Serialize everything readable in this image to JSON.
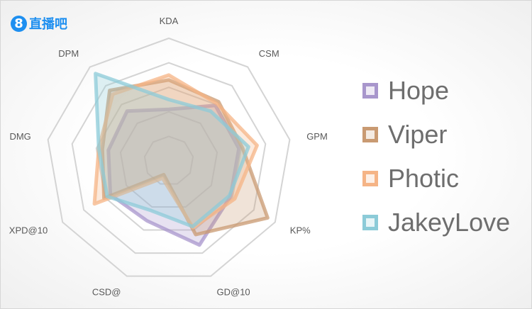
{
  "logo": {
    "mark": "8",
    "text": "直播吧"
  },
  "chart_data": {
    "type": "radar",
    "axes": [
      "KDA",
      "CSM",
      "GPM",
      "KP%",
      "GD@10",
      "CSD@",
      "XPD@10",
      "DMG",
      "DPM"
    ],
    "range": [
      0,
      1
    ],
    "series": [
      {
        "name": "Hope",
        "color": "#a896cc",
        "values": [
          0.42,
          0.59,
          0.58,
          0.58,
          0.73,
          0.52,
          0.55,
          0.5,
          0.53
        ]
      },
      {
        "name": "Viper",
        "color": "#c99a72",
        "values": [
          0.66,
          0.63,
          0.61,
          0.93,
          0.64,
          0.12,
          0.61,
          0.55,
          0.75
        ]
      },
      {
        "name": "Photic",
        "color": "#f5b486",
        "values": [
          0.7,
          0.61,
          0.73,
          0.62,
          0.58,
          0.15,
          0.7,
          0.58,
          0.71
        ]
      },
      {
        "name": "JakeyLove",
        "color": "#8ccbd8",
        "values": [
          0.5,
          0.53,
          0.66,
          0.57,
          0.57,
          0.43,
          0.58,
          0.58,
          0.93
        ]
      }
    ]
  }
}
